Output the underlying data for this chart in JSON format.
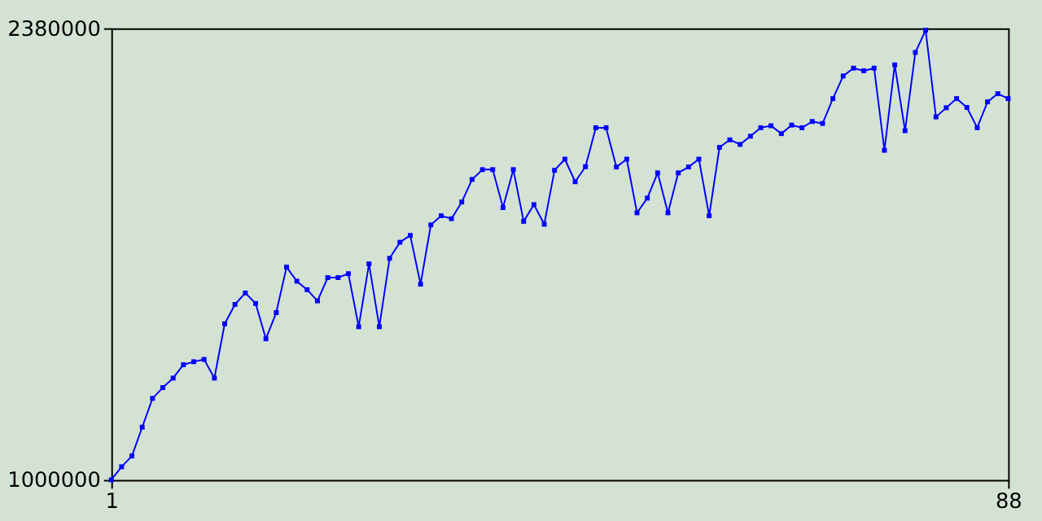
{
  "chart_data": {
    "type": "line",
    "marker": "square",
    "line_style": "solid",
    "grid": false,
    "legend": false,
    "x": [
      1,
      2,
      3,
      4,
      5,
      6,
      7,
      8,
      9,
      10,
      11,
      12,
      13,
      14,
      15,
      16,
      17,
      18,
      19,
      20,
      21,
      22,
      23,
      24,
      25,
      26,
      27,
      28,
      29,
      30,
      31,
      32,
      33,
      34,
      35,
      36,
      37,
      38,
      39,
      40,
      41,
      42,
      43,
      44,
      45,
      46,
      47,
      48,
      49,
      50,
      51,
      52,
      53,
      54,
      55,
      56,
      57,
      58,
      59,
      60,
      61,
      62,
      63,
      64,
      65,
      66,
      67,
      68,
      69,
      70,
      71,
      72,
      73,
      74,
      75,
      76,
      77,
      78,
      79,
      80,
      81,
      82,
      83,
      84,
      85,
      86,
      87,
      88
    ],
    "series": [
      {
        "color": "#0000ff",
        "values": [
          1000000,
          1040000,
          1073000,
          1161000,
          1249000,
          1282000,
          1311000,
          1352000,
          1361000,
          1368000,
          1311000,
          1477000,
          1536000,
          1571000,
          1539000,
          1431000,
          1511000,
          1650000,
          1607000,
          1581000,
          1547000,
          1618000,
          1618000,
          1630000,
          1468000,
          1660000,
          1468000,
          1677000,
          1726000,
          1747000,
          1598000,
          1779000,
          1807000,
          1798000,
          1849000,
          1918000,
          1948000,
          1948000,
          1832000,
          1948000,
          1790000,
          1841000,
          1781000,
          1946000,
          1980000,
          1911000,
          1957000,
          2076000,
          2076000,
          1956000,
          1980000,
          1816000,
          1861000,
          1938000,
          1816000,
          1938000,
          1956000,
          1980000,
          1807000,
          2016000,
          2039000,
          2025000,
          2050000,
          2076000,
          2082000,
          2058000,
          2084000,
          2076000,
          2095000,
          2089000,
          2165000,
          2234000,
          2258000,
          2250000,
          2258000,
          2007000,
          2268000,
          2067000,
          2306000,
          2374000,
          2109000,
          2137000,
          2165000,
          2138000,
          2076000,
          2155000,
          2180000,
          2165000
        ]
      }
    ],
    "xlim": [
      1,
      88
    ],
    "xticks": [
      1,
      88
    ],
    "ylim": [
      1000000,
      2380000
    ],
    "yticks": [
      1000000,
      2380000
    ]
  }
}
